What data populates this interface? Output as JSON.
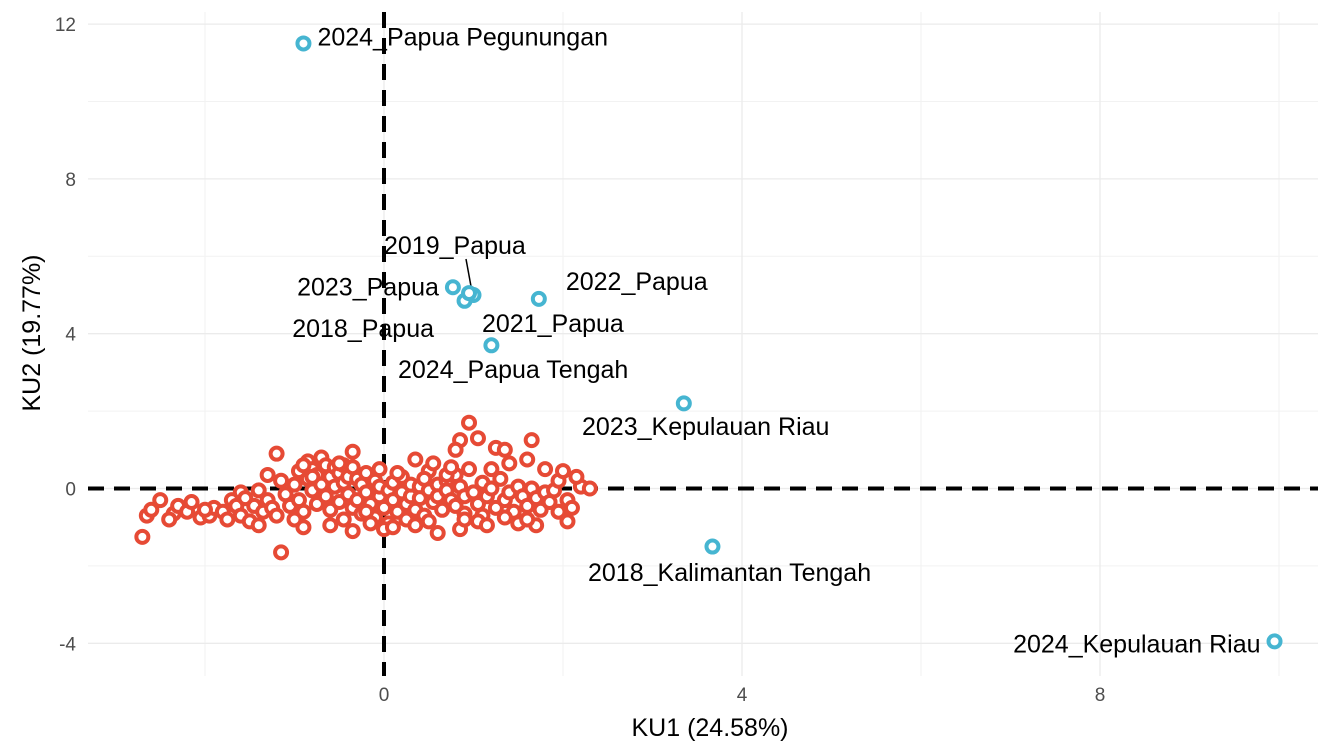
{
  "chart_data": {
    "type": "scatter",
    "title": "",
    "xlabel": "KU1 (24.58%)",
    "ylabel": "KU2 (19.77%)",
    "xlim": [
      -2.7,
      10.4
    ],
    "ylim": [
      -4.7,
      12.4
    ],
    "x_ticks": [
      0,
      4,
      8
    ],
    "y_ticks": [
      -4,
      0,
      4,
      8,
      12
    ],
    "grid": true,
    "reference_lines": {
      "x": 0,
      "y": 0,
      "style": "dashed"
    },
    "legend": "none",
    "colors": {
      "outlier": "#46b5d1",
      "regular": "#e64a35"
    },
    "outliers": [
      {
        "label": "2024_Papua Pegunungan",
        "x": -0.9,
        "y": 11.5
      },
      {
        "label": "2019_Papua",
        "x": 1.0,
        "y": 5.0
      },
      {
        "label": "2023_Papua",
        "x": 0.77,
        "y": 5.2
      },
      {
        "label": "2022_Papua",
        "x": 1.73,
        "y": 4.9
      },
      {
        "label": "2018_Papua",
        "x": 0.9,
        "y": 4.85
      },
      {
        "label": "2021_Papua",
        "x": 0.95,
        "y": 5.05
      },
      {
        "label": "2024_Papua Tengah",
        "x": 1.2,
        "y": 3.7
      },
      {
        "label": "2023_Kepulauan Riau",
        "x": 3.35,
        "y": 2.2
      },
      {
        "label": "2018_Kalimantan Tengah",
        "x": 3.67,
        "y": -1.5
      },
      {
        "label": "2024_Kepulauan Riau",
        "x": 9.95,
        "y": -3.95
      }
    ],
    "regular_points": [
      [
        -2.7,
        -1.25
      ],
      [
        -2.65,
        -0.7
      ],
      [
        -2.6,
        -0.55
      ],
      [
        -2.5,
        -0.3
      ],
      [
        -2.35,
        -0.65
      ],
      [
        -2.3,
        -0.45
      ],
      [
        -2.2,
        -0.6
      ],
      [
        -2.15,
        -0.35
      ],
      [
        -2.05,
        -0.75
      ],
      [
        -1.95,
        -0.7
      ],
      [
        -1.9,
        -0.5
      ],
      [
        -1.8,
        -0.6
      ],
      [
        -1.7,
        -0.3
      ],
      [
        -1.65,
        -0.45
      ],
      [
        -1.6,
        -0.1
      ],
      [
        -1.6,
        -0.7
      ],
      [
        -1.55,
        -0.25
      ],
      [
        -1.5,
        -0.85
      ],
      [
        -1.45,
        -0.45
      ],
      [
        -1.4,
        -0.05
      ],
      [
        -1.35,
        -0.6
      ],
      [
        -1.3,
        -0.3
      ],
      [
        -1.25,
        -0.5
      ],
      [
        -1.2,
        -0.7
      ],
      [
        -1.2,
        0.9
      ],
      [
        -1.15,
        0.2
      ],
      [
        -1.1,
        -0.15
      ],
      [
        -1.05,
        -0.45
      ],
      [
        -1.0,
        0.1
      ],
      [
        -0.95,
        -0.3
      ],
      [
        -0.95,
        0.45
      ],
      [
        -0.9,
        -0.6
      ],
      [
        -0.85,
        0.25
      ],
      [
        -0.85,
        0.7
      ],
      [
        -0.8,
        -0.05
      ],
      [
        -0.8,
        0.5
      ],
      [
        -0.75,
        -0.4
      ],
      [
        -0.75,
        0.35
      ],
      [
        -0.7,
        0.1
      ],
      [
        -0.7,
        0.8
      ],
      [
        -0.65,
        -0.2
      ],
      [
        -0.65,
        0.6
      ],
      [
        -0.6,
        0.3
      ],
      [
        -0.6,
        -0.55
      ],
      [
        -0.55,
        0.05
      ],
      [
        -0.55,
        0.55
      ],
      [
        -0.5,
        -0.35
      ],
      [
        -0.5,
        0.4
      ],
      [
        -0.45,
        0.15
      ],
      [
        -0.45,
        0.6
      ],
      [
        -0.4,
        -0.15
      ],
      [
        -0.4,
        0.3
      ],
      [
        -0.35,
        -0.5
      ],
      [
        -0.35,
        0.55
      ],
      [
        -0.3,
        -0.3
      ],
      [
        -0.3,
        0.25
      ],
      [
        -0.25,
        0.1
      ],
      [
        -0.25,
        -0.65
      ],
      [
        -0.2,
        0.4
      ],
      [
        -0.2,
        -0.1
      ],
      [
        -0.15,
        -0.4
      ],
      [
        -0.1,
        0.2
      ],
      [
        -0.1,
        -0.75
      ],
      [
        -0.05,
        -0.2
      ],
      [
        -0.05,
        0.05
      ],
      [
        0.0,
        -0.5
      ],
      [
        0.05,
        -0.05
      ],
      [
        0.05,
        -0.9
      ],
      [
        0.1,
        -0.3
      ],
      [
        0.1,
        0.15
      ],
      [
        0.15,
        -0.6
      ],
      [
        0.2,
        -0.1
      ],
      [
        0.2,
        0.3
      ],
      [
        0.25,
        -0.4
      ],
      [
        0.3,
        -0.2
      ],
      [
        0.3,
        0.1
      ],
      [
        0.35,
        -0.55
      ],
      [
        0.4,
        0.05
      ],
      [
        0.4,
        -0.25
      ],
      [
        0.45,
        -0.7
      ],
      [
        0.5,
        0.45
      ],
      [
        0.5,
        -0.05
      ],
      [
        0.55,
        -0.35
      ],
      [
        0.6,
        0.1
      ],
      [
        0.6,
        -0.2
      ],
      [
        0.65,
        -0.55
      ],
      [
        0.7,
        0.2
      ],
      [
        0.7,
        -0.05
      ],
      [
        0.75,
        -0.3
      ],
      [
        0.8,
        0.35
      ],
      [
        0.8,
        -0.45
      ],
      [
        0.85,
        0.05
      ],
      [
        0.9,
        -0.2
      ],
      [
        0.9,
        -0.65
      ],
      [
        0.95,
        0.5
      ],
      [
        1.0,
        -0.1
      ],
      [
        1.05,
        -0.4
      ],
      [
        1.1,
        0.15
      ],
      [
        1.1,
        -0.7
      ],
      [
        1.15,
        -0.2
      ],
      [
        1.2,
        0.0
      ],
      [
        1.25,
        -0.5
      ],
      [
        1.3,
        0.25
      ],
      [
        1.35,
        -0.3
      ],
      [
        1.4,
        -0.1
      ],
      [
        1.45,
        -0.6
      ],
      [
        1.5,
        0.05
      ],
      [
        1.55,
        -0.2
      ],
      [
        1.6,
        -0.45
      ],
      [
        1.65,
        0.0
      ],
      [
        1.7,
        -0.25
      ],
      [
        1.75,
        -0.55
      ],
      [
        1.8,
        -0.1
      ],
      [
        1.85,
        -0.35
      ],
      [
        1.9,
        -0.05
      ],
      [
        1.95,
        0.2
      ],
      [
        1.95,
        -0.6
      ],
      [
        2.0,
        0.45
      ],
      [
        2.05,
        -0.3
      ],
      [
        2.1,
        -0.5
      ],
      [
        2.2,
        0.05
      ],
      [
        2.3,
        0.0
      ],
      [
        -1.15,
        -1.65
      ],
      [
        -0.9,
        -1.0
      ],
      [
        -0.6,
        -0.95
      ],
      [
        -0.35,
        -1.1
      ],
      [
        -0.15,
        -0.9
      ],
      [
        0.0,
        -1.05
      ],
      [
        0.1,
        -1.0
      ],
      [
        0.6,
        -1.15
      ],
      [
        0.85,
        -1.05
      ],
      [
        1.05,
        -0.85
      ],
      [
        1.35,
        -0.75
      ],
      [
        1.7,
        -0.95
      ],
      [
        2.05,
        -0.85
      ],
      [
        0.95,
        1.7
      ],
      [
        1.05,
        1.3
      ],
      [
        0.85,
        1.25
      ],
      [
        1.25,
        1.05
      ],
      [
        1.65,
        1.25
      ],
      [
        1.6,
        0.75
      ],
      [
        1.35,
        1.0
      ],
      [
        0.8,
        1.0
      ],
      [
        0.55,
        0.65
      ],
      [
        0.35,
        0.75
      ],
      [
        -0.35,
        0.95
      ],
      [
        -0.9,
        0.6
      ],
      [
        -1.3,
        0.35
      ],
      [
        0.7,
        0.35
      ],
      [
        0.75,
        0.55
      ],
      [
        0.45,
        0.25
      ],
      [
        0.15,
        0.4
      ],
      [
        -0.05,
        0.5
      ],
      [
        -0.5,
        0.65
      ],
      [
        -0.8,
        0.3
      ],
      [
        1.2,
        0.5
      ],
      [
        1.4,
        0.65
      ],
      [
        1.8,
        0.5
      ],
      [
        2.15,
        0.3
      ],
      [
        0.25,
        -0.8
      ],
      [
        0.5,
        -0.85
      ],
      [
        1.15,
        -0.95
      ],
      [
        1.5,
        -0.9
      ],
      [
        -1.0,
        -0.8
      ],
      [
        -1.4,
        -0.95
      ],
      [
        -1.75,
        -0.8
      ],
      [
        -2.0,
        -0.55
      ],
      [
        -2.4,
        -0.8
      ],
      [
        -0.45,
        -0.8
      ],
      [
        -0.2,
        -0.6
      ],
      [
        0.35,
        -0.95
      ],
      [
        0.9,
        -0.8
      ],
      [
        1.6,
        -0.8
      ]
    ]
  }
}
